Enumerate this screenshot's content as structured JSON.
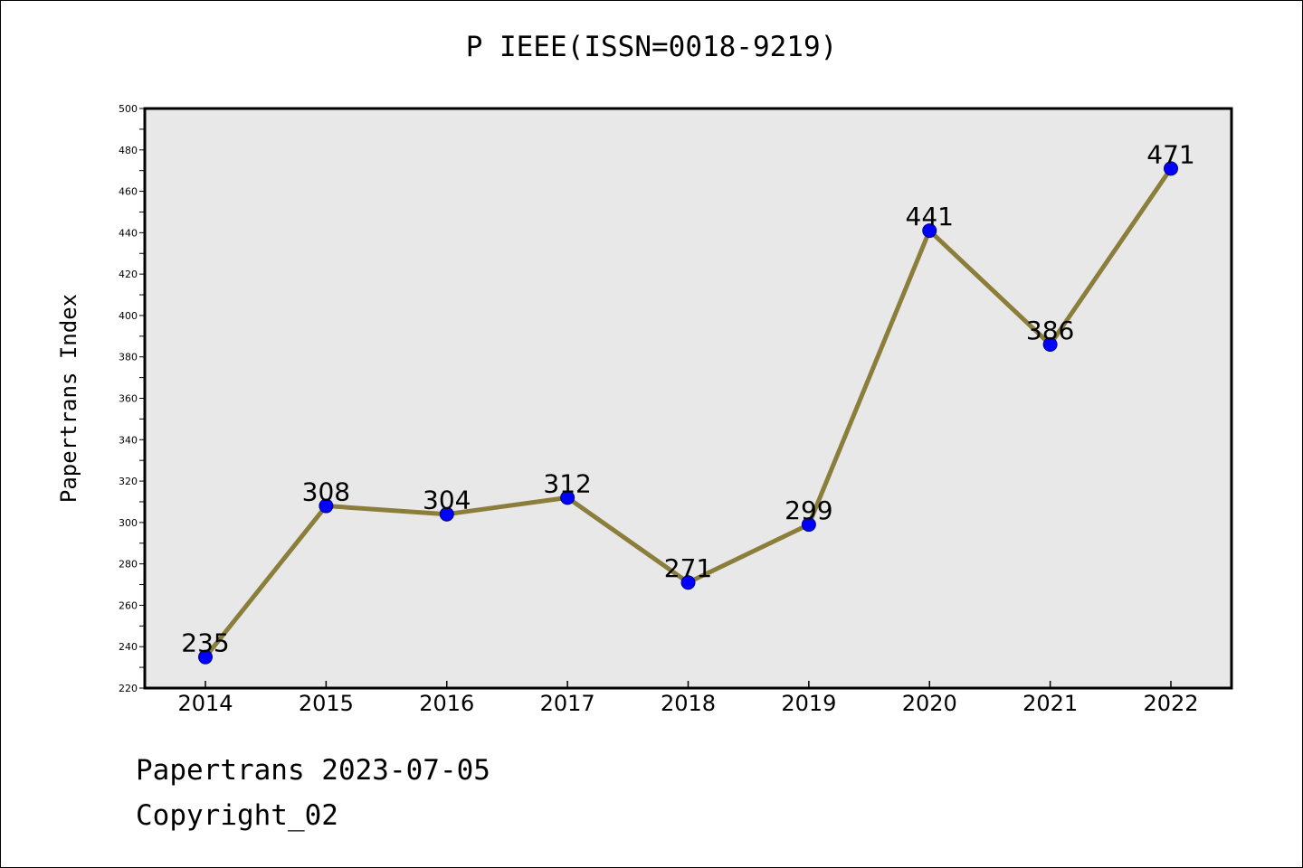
{
  "title": "P IEEE(ISSN=0018-9219)",
  "footer": {
    "line1": "Papertrans 2023-07-05",
    "line2": "Copyright_02"
  },
  "colors": {
    "plot_background": "#e8e8e8",
    "line": "#8b7d3a",
    "marker": "#0000ff",
    "marker_edge": "#000080",
    "axis": "#000000"
  },
  "chart_data": {
    "type": "line",
    "title": "P IEEE(ISSN=0018-9219)",
    "xlabel": "",
    "ylabel": "Papertrans Index",
    "categories": [
      "2014",
      "2015",
      "2016",
      "2017",
      "2018",
      "2019",
      "2020",
      "2021",
      "2022"
    ],
    "series": [
      {
        "values": [
          235,
          308,
          304,
          312,
          271,
          299,
          441,
          386,
          471
        ],
        "data_labels": [
          "235",
          "308",
          "304",
          "312",
          "271",
          "299",
          "441",
          "386",
          "471"
        ]
      }
    ],
    "ylim": [
      220,
      500
    ],
    "yticks": [
      220,
      240,
      260,
      280,
      300,
      320,
      340,
      360,
      380,
      400,
      420,
      440,
      460,
      480,
      500
    ],
    "ytick_labels": [
      "220",
      "240",
      "260",
      "280",
      "300",
      "320",
      "340",
      "360",
      "380",
      "400",
      "420",
      "440",
      "460",
      "480",
      "500"
    ],
    "yminor_step": 10,
    "grid": false,
    "legend": "none"
  }
}
